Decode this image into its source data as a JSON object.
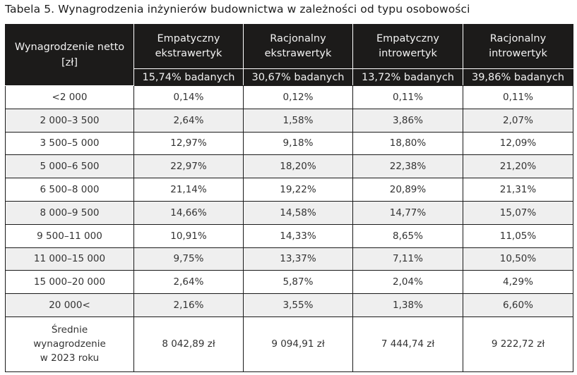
{
  "caption": "Tabela 5. Wynagrodzenia inżynierów budownictwa w zależności od typu osobowości",
  "header": {
    "first_column": "Wynagrodzenie netto [zł]",
    "columns": [
      {
        "label_line1": "Empatyczny",
        "label_line2": "ekstrawertyk",
        "share": "15,74% badanych"
      },
      {
        "label_line1": "Racjonalny",
        "label_line2": "ekstrawertyk",
        "share": "30,67% badanych"
      },
      {
        "label_line1": "Empatyczny",
        "label_line2": "introwertyk",
        "share": "13,72% badanych"
      },
      {
        "label_line1": "Racjonalny",
        "label_line2": "introwertyk",
        "share": "39,86% badanych"
      }
    ]
  },
  "rows": [
    {
      "range": "<2 000",
      "values": [
        "0,14%",
        "0,12%",
        "0,11%",
        "0,11%"
      ]
    },
    {
      "range": "2 000–3 500",
      "values": [
        "2,64%",
        "1,58%",
        "3,86%",
        "2,07%"
      ]
    },
    {
      "range": "3 500–5 000",
      "values": [
        "12,97%",
        "9,18%",
        "18,80%",
        "12,09%"
      ]
    },
    {
      "range": "5 000–6 500",
      "values": [
        "22,97%",
        "18,20%",
        "22,38%",
        "21,20%"
      ]
    },
    {
      "range": "6 500–8 000",
      "values": [
        "21,14%",
        "19,22%",
        "20,89%",
        "21,31%"
      ]
    },
    {
      "range": "8 000–9 500",
      "values": [
        "14,66%",
        "14,58%",
        "14,77%",
        "15,07%"
      ]
    },
    {
      "range": "9 500–11 000",
      "values": [
        "10,91%",
        "14,33%",
        "8,65%",
        "11,05%"
      ]
    },
    {
      "range": "11 000–15 000",
      "values": [
        "9,75%",
        "13,37%",
        "7,11%",
        "10,50%"
      ]
    },
    {
      "range": "15 000–20 000",
      "values": [
        "2,64%",
        "5,87%",
        "2,04%",
        "4,29%"
      ]
    },
    {
      "range": "20 000<",
      "values": [
        "2,16%",
        "3,55%",
        "1,38%",
        "6,60%"
      ]
    }
  ],
  "summary": {
    "label_line1": "Średnie",
    "label_line2": "wynagrodzenie",
    "label_line3": "w 2023 roku",
    "values": [
      "8 042,89 zł",
      "9 094,91 zł",
      "7 444,74 zł",
      "9 222,72 zł"
    ]
  },
  "colors": {
    "header_bg": "#1c1b1a",
    "header_text": "#f2f2f2",
    "stripe_bg": "#efefef",
    "border": "#1a1a1a"
  }
}
